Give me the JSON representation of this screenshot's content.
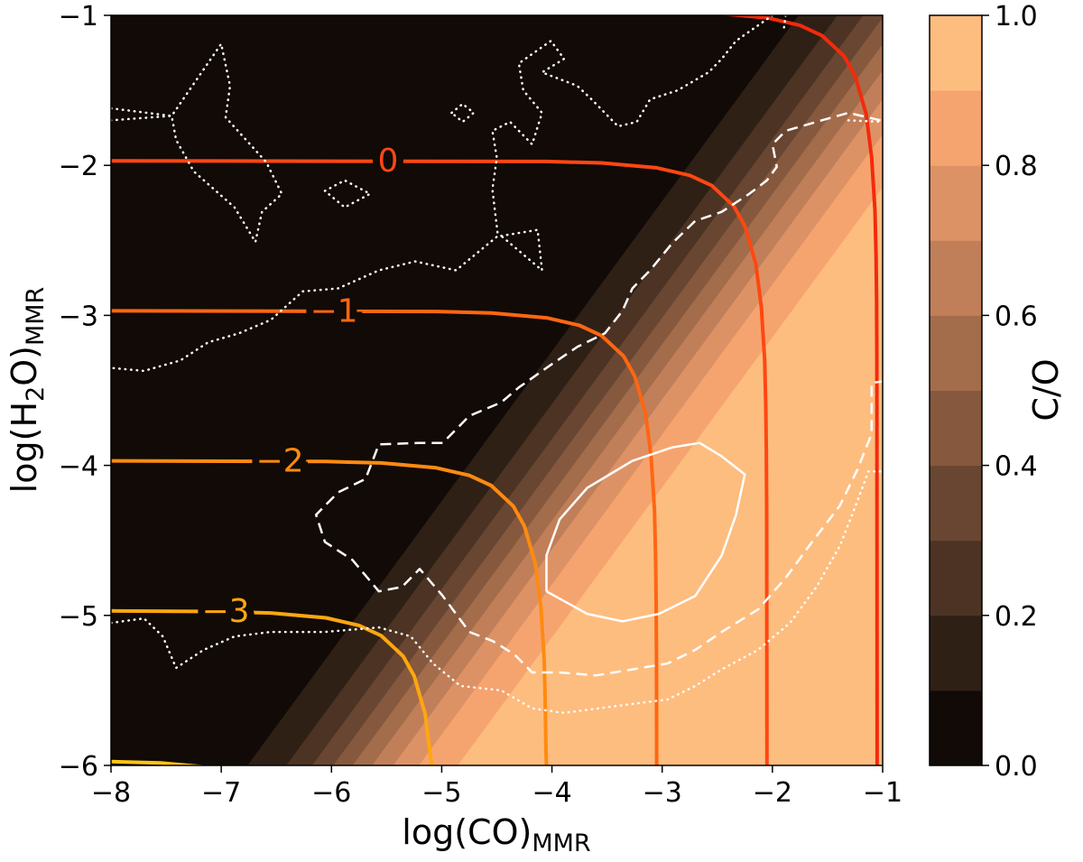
{
  "chart_data": {
    "type": "contour",
    "xlabel": [
      {
        "text": "log(CO)"
      },
      {
        "text": "MMR",
        "sub": true
      }
    ],
    "ylabel": [
      {
        "text": "log(H"
      },
      {
        "text": "2",
        "sub": true
      },
      {
        "text": "O)"
      },
      {
        "text": "MMR",
        "sub": true
      }
    ],
    "xlim": [
      -8,
      -1
    ],
    "ylim": [
      -6,
      -1
    ],
    "xticks": [
      {
        "value": -8,
        "label": "−8"
      },
      {
        "value": -7,
        "label": "−7"
      },
      {
        "value": -6,
        "label": "−6"
      },
      {
        "value": -5,
        "label": "−5"
      },
      {
        "value": -4,
        "label": "−4"
      },
      {
        "value": -3,
        "label": "−3"
      },
      {
        "value": -2,
        "label": "−2"
      },
      {
        "value": -1,
        "label": "−1"
      }
    ],
    "yticks": [
      {
        "value": -6,
        "label": "−6"
      },
      {
        "value": -5,
        "label": "−5"
      },
      {
        "value": -4,
        "label": "−4"
      },
      {
        "value": -3,
        "label": "−3"
      },
      {
        "value": -2,
        "label": "−2"
      },
      {
        "value": -1,
        "label": "−1"
      }
    ],
    "fill": {
      "levels": [
        0,
        0.1,
        0.2,
        0.3,
        0.4,
        0.5,
        0.6,
        0.7,
        0.8,
        0.9,
        1.0
      ],
      "colors": [
        "#110a06",
        "#2f2016",
        "#4c3323",
        "#694631",
        "#86593e",
        "#a36c4b",
        "#c07f59",
        "#dd9266",
        "#f6a46f",
        "#fdbd7f"
      ],
      "edges": [
        {
          "x": [
            -6.762,
            -1.762
          ],
          "y": [
            -6,
            -1
          ]
        },
        {
          "x": [
            -6.41,
            -1.41
          ],
          "y": [
            -6,
            -1
          ]
        },
        {
          "x": [
            -6.176,
            -1.176
          ],
          "y": [
            -6,
            -1
          ]
        },
        {
          "x": [
            -5.984,
            -0.984
          ],
          "y": [
            -6,
            -1
          ]
        },
        {
          "x": [
            -5.808,
            -0.808
          ],
          "y": [
            -6,
            -1
          ]
        },
        {
          "x": [
            -5.632,
            -0.632
          ],
          "y": [
            -6,
            -1
          ]
        },
        {
          "x": [
            -5.44,
            -0.44
          ],
          "y": [
            -6,
            -1
          ]
        },
        {
          "x": [
            -5.206,
            -0.206
          ],
          "y": [
            -6,
            -1
          ]
        },
        {
          "x": [
            -4.854,
            0.146
          ],
          "y": [
            -6,
            -1
          ]
        }
      ]
    },
    "colorbar": {
      "label": "C/O",
      "lim": [
        0,
        1
      ],
      "ticks": [
        {
          "value": 0,
          "label": "0.0"
        },
        {
          "value": 0.2,
          "label": "0.2"
        },
        {
          "value": 0.4,
          "label": "0.4"
        },
        {
          "value": 0.6,
          "label": "0.6"
        },
        {
          "value": 0.8,
          "label": "0.8"
        },
        {
          "value": 1.0,
          "label": "1.0"
        }
      ]
    },
    "lines": [
      {
        "color": "#f42a0c",
        "style": "solid",
        "x": [
          -3.05,
          -2.55,
          -2.05,
          -1.75,
          -1.55,
          -1.35,
          -1.25,
          -1.15,
          -1.1,
          -1.07,
          -1.06,
          -1.055,
          -1.052,
          -1.05
        ],
        "y": [
          -0.974,
          -0.984,
          -1.016,
          -1.067,
          -1.135,
          -1.272,
          -1.404,
          -1.657,
          -1.947,
          -2.3,
          -2.6,
          -2.9,
          -3.3,
          -6
        ]
      },
      {
        "label": "0",
        "color": "#ff4712",
        "style": "solid",
        "x": [
          -8,
          -4.05,
          -3.55,
          -3.05,
          -2.75,
          -2.55,
          -2.35,
          -2.25,
          -2.15,
          -2.1,
          -2.07,
          -2.06,
          -2.055,
          -2.052,
          -2.05
        ],
        "y": [
          -1.97,
          -1.974,
          -1.984,
          -2.016,
          -2.067,
          -2.135,
          -2.272,
          -2.404,
          -2.657,
          -2.947,
          -3.3,
          -3.6,
          -3.9,
          -4.3,
          -6
        ]
      },
      {
        "label": "−1",
        "color": "#ff6612",
        "style": "solid",
        "x": [
          -8,
          -5.05,
          -4.55,
          -4.05,
          -3.75,
          -3.55,
          -3.35,
          -3.25,
          -3.15,
          -3.1,
          -3.07,
          -3.06,
          -3.055,
          -3.052,
          -3.05
        ],
        "y": [
          -2.97,
          -2.974,
          -2.984,
          -3.016,
          -3.067,
          -3.135,
          -3.272,
          -3.404,
          -3.657,
          -3.947,
          -4.3,
          -4.6,
          -4.9,
          -5.3,
          -6
        ]
      },
      {
        "label": "−2",
        "color": "#ff8a10",
        "style": "solid",
        "x": [
          -8,
          -6.05,
          -5.55,
          -5.05,
          -4.75,
          -4.55,
          -4.35,
          -4.25,
          -4.15,
          -4.1,
          -4.07,
          -4.06,
          -4.055,
          -4.05
        ],
        "y": [
          -3.97,
          -3.974,
          -3.984,
          -4.016,
          -4.067,
          -4.135,
          -4.272,
          -4.404,
          -4.657,
          -4.947,
          -5.3,
          -5.6,
          -5.9,
          -6
        ]
      },
      {
        "label": "−3",
        "color": "#ffa70e",
        "style": "solid",
        "x": [
          -8,
          -7.05,
          -6.55,
          -6.05,
          -5.75,
          -5.55,
          -5.35,
          -5.25,
          -5.15,
          -5.1,
          -5.09
        ],
        "y": [
          -4.97,
          -4.974,
          -4.984,
          -5.016,
          -5.067,
          -5.135,
          -5.272,
          -5.404,
          -5.657,
          -5.947,
          -6
        ]
      },
      {
        "color": "#ffc414",
        "style": "solid",
        "x": [
          -8,
          -7.55,
          -7.05
        ],
        "y": [
          -5.974,
          -5.984,
          -6.016
        ]
      },
      {
        "color": "#ffffff",
        "style": "thin",
        "x": [
          -4.05,
          -4.05,
          -3.93,
          -3.68,
          -3.27,
          -2.91,
          -2.66,
          -2.46,
          -2.25,
          -2.33,
          -2.46,
          -2.7,
          -3.03,
          -3.36,
          -3.68,
          -4.05
        ],
        "y": [
          -4.84,
          -4.6,
          -4.36,
          -4.15,
          -3.97,
          -3.88,
          -3.85,
          -3.94,
          -4.06,
          -4.33,
          -4.6,
          -4.87,
          -4.99,
          -5.04,
          -4.99,
          -4.84
        ]
      },
      {
        "color": "#ffffff",
        "style": "dashed",
        "x": [
          -1.02,
          -1.31,
          -1.6,
          -1.88,
          -2.0,
          -1.96,
          -2.05,
          -2.21,
          -2.46,
          -2.7,
          -2.91,
          -3.11,
          -3.27,
          -3.36,
          -3.52,
          -3.77,
          -4.01,
          -4.3,
          -4.46,
          -4.75,
          -4.99,
          -5.2,
          -5.57,
          -5.69,
          -5.94,
          -6.14,
          -6.06,
          -5.81,
          -5.57,
          -5.36,
          -5.2,
          -4.99,
          -4.75,
          -4.54,
          -4.34,
          -4.18,
          -3.93,
          -3.6,
          -3.27,
          -2.95,
          -2.7,
          -2.46,
          -2.13,
          -1.88,
          -1.64,
          -1.39,
          -1.23,
          -1.1,
          -1.1,
          -1.0
        ],
        "y": [
          -1.7,
          -1.65,
          -1.71,
          -1.77,
          -1.86,
          -2.01,
          -2.1,
          -2.19,
          -2.31,
          -2.37,
          -2.52,
          -2.7,
          -2.82,
          -2.97,
          -3.12,
          -3.21,
          -3.33,
          -3.48,
          -3.58,
          -3.67,
          -3.85,
          -3.85,
          -3.86,
          -4.09,
          -4.18,
          -4.33,
          -4.51,
          -4.63,
          -4.84,
          -4.81,
          -4.69,
          -4.87,
          -5.11,
          -5.17,
          -5.26,
          -5.38,
          -5.38,
          -5.4,
          -5.36,
          -5.32,
          -5.23,
          -5.11,
          -4.96,
          -4.75,
          -4.51,
          -4.27,
          -4.03,
          -3.79,
          -3.45,
          -3.44
        ]
      },
      {
        "color": "#ffffff",
        "style": "dotted",
        "x": [
          -8.0,
          -7.45,
          -7.0,
          -6.92,
          -6.96,
          -6.59,
          -6.45,
          -6.63,
          -6.69,
          -6.88,
          -7.25,
          -7.41,
          -7.45,
          -8.0
        ],
        "y": [
          -1.62,
          -1.67,
          -1.19,
          -1.47,
          -1.68,
          -1.98,
          -2.19,
          -2.31,
          -2.51,
          -2.28,
          -2.04,
          -1.83,
          -1.67,
          -1.7
        ]
      },
      {
        "color": "#ffffff",
        "style": "dotted",
        "x": [
          -4.91,
          -4.81,
          -4.71,
          -4.81,
          -4.91
        ],
        "y": [
          -1.65,
          -1.59,
          -1.65,
          -1.71,
          -1.65
        ]
      },
      {
        "color": "#ffffff",
        "style": "dotted",
        "x": [
          -6.06,
          -5.88,
          -5.65,
          -5.88,
          -6.06
        ],
        "y": [
          -2.17,
          -2.1,
          -2.19,
          -2.28,
          -2.17
        ]
      },
      {
        "color": "#ffffff",
        "style": "dotted",
        "x": [
          -4.46,
          -4.13,
          -4.09,
          -4.46
        ],
        "y": [
          -2.47,
          -2.43,
          -2.7,
          -2.47
        ]
      },
      {
        "color": "#ffffff",
        "style": "dotted",
        "x": [
          -2.0,
          -2.33,
          -2.46,
          -2.58,
          -2.86,
          -3.11,
          -3.23,
          -3.4,
          -3.64,
          -3.77,
          -4.09,
          -3.89,
          -4.01,
          -4.3,
          -4.26,
          -4.09,
          -4.18,
          -4.38,
          -4.54,
          -4.5,
          -4.54,
          -4.49,
          -4.87,
          -5.24,
          -5.57,
          -5.94,
          -6.26,
          -6.55,
          -6.84,
          -7.12,
          -7.37,
          -7.7,
          -8.0
        ],
        "y": [
          -1.0,
          -1.17,
          -1.29,
          -1.38,
          -1.5,
          -1.56,
          -1.71,
          -1.74,
          -1.56,
          -1.47,
          -1.38,
          -1.29,
          -1.17,
          -1.32,
          -1.5,
          -1.65,
          -1.86,
          -1.71,
          -1.77,
          -1.95,
          -2.16,
          -2.47,
          -2.7,
          -2.64,
          -2.7,
          -2.82,
          -2.84,
          -3.03,
          -3.12,
          -3.18,
          -3.3,
          -3.37,
          -3.35
        ]
      },
      {
        "color": "#ffffff",
        "style": "dotted",
        "x": [
          -1.88,
          -1.9
        ],
        "y": [
          -1.0,
          -1.11
        ]
      },
      {
        "color": "#ffffff",
        "style": "dotted",
        "x": [
          -1.31,
          -1.0
        ],
        "y": [
          -1.7,
          -1.71
        ]
      },
      {
        "color": "#ffffff",
        "style": "dotted",
        "x": [
          -8.0,
          -7.7,
          -7.53,
          -7.41,
          -7.16,
          -6.88,
          -6.55,
          -6.06,
          -5.57,
          -5.28,
          -5.08,
          -4.83,
          -4.46,
          -4.18,
          -3.89,
          -3.27,
          -2.95,
          -2.7,
          -2.46,
          -2.13,
          -1.84,
          -1.6,
          -1.39,
          -1.23,
          -1.13,
          -1.0
        ],
        "y": [
          -5.05,
          -5.02,
          -5.14,
          -5.35,
          -5.23,
          -5.14,
          -5.11,
          -5.11,
          -5.08,
          -5.14,
          -5.32,
          -5.47,
          -5.5,
          -5.62,
          -5.65,
          -5.59,
          -5.56,
          -5.47,
          -5.36,
          -5.23,
          -5.05,
          -4.81,
          -4.54,
          -4.24,
          -4.04,
          -4.04
        ]
      }
    ]
  }
}
